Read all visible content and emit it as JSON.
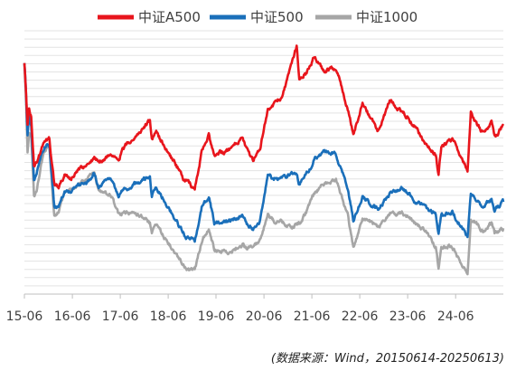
{
  "chart_data": {
    "type": "line",
    "title": "",
    "xlabel": "",
    "ylabel": "",
    "grid": true,
    "legend_position": "top-center",
    "x_ticks": [
      "15-06",
      "16-06",
      "17-06",
      "18-06",
      "19-06",
      "20-06",
      "21-06",
      "22-06",
      "23-06",
      "24-06"
    ],
    "x_range": [
      "2015-06-14",
      "2025-06-13"
    ],
    "y_range": [
      0,
      1
    ],
    "series": [
      {
        "name": "中证A500",
        "color": "#e8151c",
        "points": [
          [
            "2015-06-14",
            0.88
          ],
          [
            "2015-06-25",
            0.78
          ],
          [
            "2015-07-08",
            0.64
          ],
          [
            "2015-07-20",
            0.7
          ],
          [
            "2015-08-05",
            0.67
          ],
          [
            "2015-08-26",
            0.49
          ],
          [
            "2015-09-15",
            0.5
          ],
          [
            "2015-10-20",
            0.55
          ],
          [
            "2015-11-15",
            0.58
          ],
          [
            "2015-12-22",
            0.59
          ],
          [
            "2016-01-05",
            0.52
          ],
          [
            "2016-01-28",
            0.42
          ],
          [
            "2016-03-01",
            0.4
          ],
          [
            "2016-04-15",
            0.45
          ],
          [
            "2016-06-01",
            0.44
          ],
          [
            "2016-08-01",
            0.47
          ],
          [
            "2016-10-01",
            0.49
          ],
          [
            "2016-11-28",
            0.52
          ],
          [
            "2017-01-01",
            0.5
          ],
          [
            "2017-04-01",
            0.53
          ],
          [
            "2017-06-01",
            0.52
          ],
          [
            "2017-08-01",
            0.57
          ],
          [
            "2017-11-20",
            0.62
          ],
          [
            "2018-01-26",
            0.66
          ],
          [
            "2018-02-10",
            0.59
          ],
          [
            "2018-03-15",
            0.61
          ],
          [
            "2018-06-01",
            0.55
          ],
          [
            "2018-08-15",
            0.49
          ],
          [
            "2018-10-20",
            0.43
          ],
          [
            "2019-01-03",
            0.4
          ],
          [
            "2019-02-25",
            0.54
          ],
          [
            "2019-04-20",
            0.6
          ],
          [
            "2019-06-01",
            0.52
          ],
          [
            "2019-08-01",
            0.54
          ],
          [
            "2019-10-01",
            0.55
          ],
          [
            "2019-12-31",
            0.6
          ],
          [
            "2020-02-03",
            0.55
          ],
          [
            "2020-03-23",
            0.51
          ],
          [
            "2020-05-15",
            0.56
          ],
          [
            "2020-07-13",
            0.7
          ],
          [
            "2020-09-01",
            0.72
          ],
          [
            "2020-11-01",
            0.75
          ],
          [
            "2021-01-15",
            0.88
          ],
          [
            "2021-02-18",
            0.94
          ],
          [
            "2021-03-10",
            0.82
          ],
          [
            "2021-05-01",
            0.84
          ],
          [
            "2021-07-01",
            0.9
          ],
          [
            "2021-09-15",
            0.85
          ],
          [
            "2021-12-15",
            0.86
          ],
          [
            "2022-03-15",
            0.7
          ],
          [
            "2022-04-26",
            0.61
          ],
          [
            "2022-07-05",
            0.72
          ],
          [
            "2022-10-31",
            0.62
          ],
          [
            "2023-01-28",
            0.73
          ],
          [
            "2023-05-01",
            0.7
          ],
          [
            "2023-08-15",
            0.63
          ],
          [
            "2023-10-23",
            0.57
          ],
          [
            "2024-01-15",
            0.53
          ],
          [
            "2024-02-05",
            0.45
          ],
          [
            "2024-02-26",
            0.56
          ],
          [
            "2024-05-20",
            0.59
          ],
          [
            "2024-09-13",
            0.47
          ],
          [
            "2024-10-08",
            0.69
          ],
          [
            "2024-11-15",
            0.65
          ],
          [
            "2025-01-13",
            0.61
          ],
          [
            "2025-03-15",
            0.65
          ],
          [
            "2025-04-07",
            0.6
          ],
          [
            "2025-06-13",
            0.64
          ]
        ]
      },
      {
        "name": "中证500",
        "color": "#1a6fba",
        "points": [
          [
            "2015-06-14",
            0.88
          ],
          [
            "2015-06-25",
            0.78
          ],
          [
            "2015-07-08",
            0.6
          ],
          [
            "2015-07-20",
            0.67
          ],
          [
            "2015-08-05",
            0.64
          ],
          [
            "2015-08-26",
            0.44
          ],
          [
            "2015-09-15",
            0.46
          ],
          [
            "2015-10-20",
            0.53
          ],
          [
            "2015-11-15",
            0.56
          ],
          [
            "2015-12-22",
            0.57
          ],
          [
            "2016-01-05",
            0.48
          ],
          [
            "2016-01-28",
            0.33
          ],
          [
            "2016-03-01",
            0.33
          ],
          [
            "2016-04-15",
            0.39
          ],
          [
            "2016-06-01",
            0.39
          ],
          [
            "2016-08-01",
            0.42
          ],
          [
            "2016-10-01",
            0.42
          ],
          [
            "2016-11-28",
            0.46
          ],
          [
            "2017-01-01",
            0.41
          ],
          [
            "2017-04-01",
            0.44
          ],
          [
            "2017-06-01",
            0.38
          ],
          [
            "2017-08-01",
            0.4
          ],
          [
            "2017-11-20",
            0.43
          ],
          [
            "2018-01-26",
            0.44
          ],
          [
            "2018-02-10",
            0.37
          ],
          [
            "2018-03-15",
            0.41
          ],
          [
            "2018-06-01",
            0.34
          ],
          [
            "2018-08-15",
            0.28
          ],
          [
            "2018-10-20",
            0.22
          ],
          [
            "2019-01-03",
            0.2
          ],
          [
            "2019-02-25",
            0.33
          ],
          [
            "2019-04-20",
            0.37
          ],
          [
            "2019-06-01",
            0.27
          ],
          [
            "2019-08-01",
            0.27
          ],
          [
            "2019-10-01",
            0.28
          ],
          [
            "2019-12-31",
            0.3
          ],
          [
            "2020-02-03",
            0.27
          ],
          [
            "2020-03-23",
            0.25
          ],
          [
            "2020-05-15",
            0.28
          ],
          [
            "2020-07-13",
            0.45
          ],
          [
            "2020-09-01",
            0.44
          ],
          [
            "2020-11-01",
            0.44
          ],
          [
            "2021-01-15",
            0.46
          ],
          [
            "2021-02-18",
            0.45
          ],
          [
            "2021-03-10",
            0.42
          ],
          [
            "2021-05-01",
            0.45
          ],
          [
            "2021-07-01",
            0.51
          ],
          [
            "2021-09-15",
            0.54
          ],
          [
            "2021-12-15",
            0.53
          ],
          [
            "2022-03-15",
            0.4
          ],
          [
            "2022-04-26",
            0.28
          ],
          [
            "2022-07-05",
            0.37
          ],
          [
            "2022-10-31",
            0.32
          ],
          [
            "2023-01-28",
            0.38
          ],
          [
            "2023-05-01",
            0.4
          ],
          [
            "2023-08-15",
            0.35
          ],
          [
            "2023-10-23",
            0.33
          ],
          [
            "2024-01-15",
            0.3
          ],
          [
            "2024-02-05",
            0.23
          ],
          [
            "2024-02-26",
            0.3
          ],
          [
            "2024-05-20",
            0.31
          ],
          [
            "2024-09-13",
            0.22
          ],
          [
            "2024-10-08",
            0.38
          ],
          [
            "2024-11-15",
            0.36
          ],
          [
            "2025-01-13",
            0.33
          ],
          [
            "2025-03-15",
            0.36
          ],
          [
            "2025-04-07",
            0.32
          ],
          [
            "2025-06-13",
            0.35
          ]
        ]
      },
      {
        "name": "中证1000",
        "color": "#a6a6a6",
        "points": [
          [
            "2015-06-14",
            0.88
          ],
          [
            "2015-06-25",
            0.76
          ],
          [
            "2015-07-08",
            0.54
          ],
          [
            "2015-07-20",
            0.62
          ],
          [
            "2015-08-05",
            0.6
          ],
          [
            "2015-08-26",
            0.37
          ],
          [
            "2015-09-15",
            0.39
          ],
          [
            "2015-10-20",
            0.5
          ],
          [
            "2015-11-15",
            0.55
          ],
          [
            "2015-12-22",
            0.57
          ],
          [
            "2016-01-05",
            0.46
          ],
          [
            "2016-01-28",
            0.3
          ],
          [
            "2016-03-01",
            0.31
          ],
          [
            "2016-04-15",
            0.38
          ],
          [
            "2016-06-01",
            0.39
          ],
          [
            "2016-08-01",
            0.42
          ],
          [
            "2016-10-01",
            0.43
          ],
          [
            "2016-11-28",
            0.47
          ],
          [
            "2017-01-01",
            0.39
          ],
          [
            "2017-04-01",
            0.38
          ],
          [
            "2017-06-01",
            0.3
          ],
          [
            "2017-08-01",
            0.31
          ],
          [
            "2017-11-20",
            0.3
          ],
          [
            "2018-01-26",
            0.27
          ],
          [
            "2018-02-10",
            0.23
          ],
          [
            "2018-03-15",
            0.27
          ],
          [
            "2018-06-01",
            0.2
          ],
          [
            "2018-08-15",
            0.15
          ],
          [
            "2018-10-20",
            0.1
          ],
          [
            "2019-01-03",
            0.09
          ],
          [
            "2019-02-25",
            0.2
          ],
          [
            "2019-04-20",
            0.25
          ],
          [
            "2019-06-01",
            0.17
          ],
          [
            "2019-08-01",
            0.16
          ],
          [
            "2019-10-01",
            0.16
          ],
          [
            "2019-12-31",
            0.19
          ],
          [
            "2020-02-03",
            0.17
          ],
          [
            "2020-03-23",
            0.18
          ],
          [
            "2020-05-15",
            0.2
          ],
          [
            "2020-07-13",
            0.31
          ],
          [
            "2020-09-01",
            0.28
          ],
          [
            "2020-11-01",
            0.27
          ],
          [
            "2021-01-15",
            0.25
          ],
          [
            "2021-02-18",
            0.27
          ],
          [
            "2021-03-10",
            0.27
          ],
          [
            "2021-05-01",
            0.31
          ],
          [
            "2021-07-01",
            0.38
          ],
          [
            "2021-09-15",
            0.42
          ],
          [
            "2021-12-15",
            0.43
          ],
          [
            "2022-03-15",
            0.3
          ],
          [
            "2022-04-26",
            0.17
          ],
          [
            "2022-07-05",
            0.29
          ],
          [
            "2022-10-31",
            0.26
          ],
          [
            "2023-01-28",
            0.3
          ],
          [
            "2023-05-01",
            0.31
          ],
          [
            "2023-08-15",
            0.27
          ],
          [
            "2023-10-23",
            0.24
          ],
          [
            "2024-01-15",
            0.18
          ],
          [
            "2024-02-05",
            0.1
          ],
          [
            "2024-02-26",
            0.18
          ],
          [
            "2024-05-20",
            0.18
          ],
          [
            "2024-09-13",
            0.08
          ],
          [
            "2024-10-08",
            0.28
          ],
          [
            "2024-11-15",
            0.27
          ],
          [
            "2025-01-13",
            0.24
          ],
          [
            "2025-03-15",
            0.27
          ],
          [
            "2025-04-07",
            0.23
          ],
          [
            "2025-06-13",
            0.25
          ]
        ]
      }
    ]
  },
  "source_note": "(数据来源：Wind，20150614-20250613)"
}
